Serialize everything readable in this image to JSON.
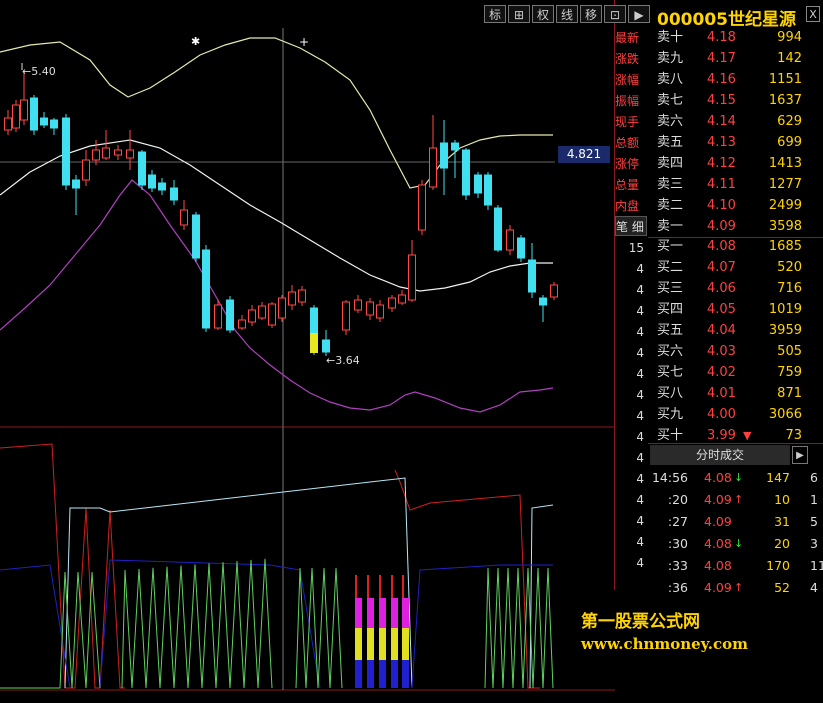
{
  "toolbar": {
    "buttons": [
      "标",
      "⊞",
      "权",
      "线",
      "移",
      "⊡",
      "▶"
    ]
  },
  "stock": {
    "code": "000005",
    "name": "世纪星源",
    "close_label": "X"
  },
  "chart": {
    "crosshair_price": "4.821",
    "high_label": "5.40",
    "low_label": "3.64",
    "markers": [
      "✱",
      "+"
    ]
  },
  "asks": [
    {
      "label": "卖十",
      "price": "4.18",
      "vol": "994"
    },
    {
      "label": "卖九",
      "price": "4.17",
      "vol": "142"
    },
    {
      "label": "卖八",
      "price": "4.16",
      "vol": "1151"
    },
    {
      "label": "卖七",
      "price": "4.15",
      "vol": "1637"
    },
    {
      "label": "卖六",
      "price": "4.14",
      "vol": "629"
    },
    {
      "label": "卖五",
      "price": "4.13",
      "vol": "699"
    },
    {
      "label": "卖四",
      "price": "4.12",
      "vol": "1413"
    },
    {
      "label": "卖三",
      "price": "4.11",
      "vol": "1277"
    },
    {
      "label": "卖二",
      "price": "4.10",
      "vol": "2499"
    },
    {
      "label": "卖一",
      "price": "4.09",
      "vol": "3598"
    }
  ],
  "bids": [
    {
      "label": "买一",
      "price": "4.08",
      "vol": "1685"
    },
    {
      "label": "买二",
      "price": "4.07",
      "vol": "520"
    },
    {
      "label": "买三",
      "price": "4.06",
      "vol": "716"
    },
    {
      "label": "买四",
      "price": "4.05",
      "vol": "1019"
    },
    {
      "label": "买五",
      "price": "4.04",
      "vol": "3959"
    },
    {
      "label": "买六",
      "price": "4.03",
      "vol": "505"
    },
    {
      "label": "买七",
      "price": "4.02",
      "vol": "759"
    },
    {
      "label": "买八",
      "price": "4.01",
      "vol": "871"
    },
    {
      "label": "买九",
      "price": "4.00",
      "vol": "3066"
    },
    {
      "label": "买十",
      "price": "3.99",
      "vol": "73",
      "arrow": "▼"
    }
  ],
  "ticks": {
    "header": "分时成交",
    "next": "▶",
    "rows": [
      {
        "time": "14:56",
        "price": "4.08",
        "dir": "↓",
        "vol": "147",
        "n": "6"
      },
      {
        "time": ":20",
        "price": "4.09",
        "dir": "↑",
        "vol": "10",
        "n": "1"
      },
      {
        "time": ":27",
        "price": "4.09",
        "dir": "",
        "vol": "31",
        "n": "5"
      },
      {
        "time": ":30",
        "price": "4.08",
        "dir": "↓",
        "vol": "20",
        "n": "3"
      },
      {
        "time": ":33",
        "price": "4.08",
        "dir": "",
        "vol": "170",
        "n": "11"
      },
      {
        "time": ":36",
        "price": "4.09",
        "dir": "↑",
        "vol": "52",
        "n": "4"
      }
    ]
  },
  "side_labels": [
    "最新",
    "涨跌",
    "涨幅",
    "振幅",
    "现手",
    "总额",
    "涨停",
    "总量",
    "内盘"
  ],
  "side_btn": "笔 细",
  "side_col": "4",
  "side_first": "15",
  "watermark": {
    "line1": "第一股票公式网",
    "line2": "www.chnmoney.com"
  },
  "colors": {
    "up": "#ff4040",
    "down": "#3fdcf0",
    "ma_white": "#f0f0c0",
    "ma_yellow": "#f5e6a0",
    "band_low": "#b040b0"
  }
}
